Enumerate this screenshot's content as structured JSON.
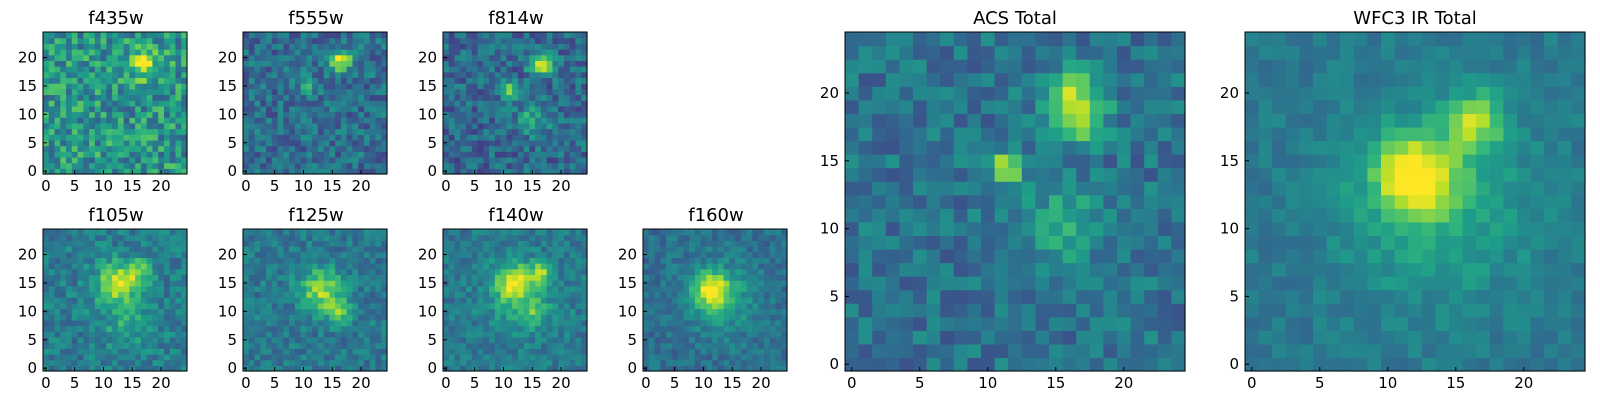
{
  "chart_data": {
    "type": "heatmap",
    "colormap": "viridis",
    "grid_size": 25,
    "panels": [
      {
        "id": "f435w",
        "title": "f435w",
        "xticks": [
          0,
          5,
          10,
          15,
          20
        ],
        "yticks": [
          0,
          5,
          10,
          15,
          20
        ],
        "noise": 0.22,
        "background": 0.52,
        "sources": [
          {
            "x": 17,
            "y": 19,
            "amp": 0.42,
            "sigma": 1.8
          }
        ]
      },
      {
        "id": "f555w",
        "title": "f555w",
        "xticks": [
          0,
          5,
          10,
          15,
          20
        ],
        "yticks": [
          0,
          5,
          10,
          15,
          20
        ],
        "noise": 0.16,
        "background": 0.36,
        "sources": [
          {
            "x": 16.5,
            "y": 19.5,
            "amp": 0.6,
            "sigma": 1.3
          },
          {
            "x": 11,
            "y": 15,
            "amp": 0.22,
            "sigma": 1.0
          }
        ]
      },
      {
        "id": "f814w",
        "title": "f814w",
        "xticks": [
          0,
          5,
          10,
          15,
          20
        ],
        "yticks": [
          0,
          5,
          10,
          15,
          20
        ],
        "noise": 0.16,
        "background": 0.34,
        "sources": [
          {
            "x": 16.5,
            "y": 19,
            "amp": 0.62,
            "sigma": 1.4
          },
          {
            "x": 11,
            "y": 14.5,
            "amp": 0.5,
            "sigma": 1.1
          },
          {
            "x": 15,
            "y": 9,
            "amp": 0.25,
            "sigma": 2.0
          }
        ]
      },
      {
        "id": "f105w",
        "title": "f105w",
        "xticks": [
          0,
          5,
          10,
          15,
          20
        ],
        "yticks": [
          0,
          5,
          10,
          15,
          20
        ],
        "noise": 0.13,
        "background": 0.42,
        "sources": [
          {
            "x": 12,
            "y": 15,
            "amp": 0.45,
            "sigma": 2.5
          },
          {
            "x": 16,
            "y": 17,
            "amp": 0.3,
            "sigma": 1.8
          },
          {
            "x": 14,
            "y": 8,
            "amp": 0.2,
            "sigma": 3.0
          }
        ]
      },
      {
        "id": "f125w",
        "title": "f125w",
        "xticks": [
          0,
          5,
          10,
          15,
          20
        ],
        "yticks": [
          0,
          5,
          10,
          15,
          20
        ],
        "noise": 0.12,
        "background": 0.4,
        "sources": [
          {
            "x": 13,
            "y": 14,
            "amp": 0.45,
            "sigma": 2.6
          },
          {
            "x": 16,
            "y": 10,
            "amp": 0.32,
            "sigma": 1.6
          }
        ]
      },
      {
        "id": "f140w",
        "title": "f140w",
        "xticks": [
          0,
          5,
          10,
          15,
          20
        ],
        "yticks": [
          0,
          5,
          10,
          15,
          20
        ],
        "noise": 0.11,
        "background": 0.4,
        "sources": [
          {
            "x": 12,
            "y": 15,
            "amp": 0.5,
            "sigma": 2.2
          },
          {
            "x": 16.5,
            "y": 17,
            "amp": 0.42,
            "sigma": 1.2
          },
          {
            "x": 15,
            "y": 9.5,
            "amp": 0.2,
            "sigma": 1.5
          },
          {
            "x": 13,
            "y": 12,
            "amp": 0.18,
            "sigma": 4.5
          }
        ]
      },
      {
        "id": "f160w",
        "title": "f160w",
        "xticks": [
          0,
          5,
          10,
          15,
          20
        ],
        "yticks": [
          0,
          5,
          10,
          15,
          20
        ],
        "noise": 0.1,
        "background": 0.36,
        "sources": [
          {
            "x": 11.5,
            "y": 14,
            "amp": 0.55,
            "sigma": 2.0
          },
          {
            "x": 13,
            "y": 12,
            "amp": 0.22,
            "sigma": 4.5
          }
        ]
      },
      {
        "id": "acs-total",
        "title": "ACS Total",
        "xticks": [
          0,
          5,
          10,
          15,
          20
        ],
        "yticks": [
          0,
          5,
          10,
          15,
          20
        ],
        "noise": 0.13,
        "background": 0.38,
        "sources": [
          {
            "x": 16.5,
            "y": 18.5,
            "amp": 0.55,
            "sigma": 1.4
          },
          {
            "x": 16.5,
            "y": 20.5,
            "amp": 0.2,
            "sigma": 1.2
          },
          {
            "x": 11.5,
            "y": 14.5,
            "amp": 0.55,
            "sigma": 0.9
          },
          {
            "x": 15.5,
            "y": 10.5,
            "amp": 0.28,
            "sigma": 1.8
          }
        ]
      },
      {
        "id": "wfc3-ir-total",
        "title": "WFC3 IR Total",
        "xticks": [
          0,
          5,
          10,
          15,
          20
        ],
        "yticks": [
          0,
          5,
          10,
          15,
          20
        ],
        "noise": 0.07,
        "background": 0.4,
        "sources": [
          {
            "x": 12,
            "y": 14,
            "amp": 0.55,
            "sigma": 2.0
          },
          {
            "x": 16.5,
            "y": 18,
            "amp": 0.42,
            "sigma": 1.4
          },
          {
            "x": 13.5,
            "y": 12,
            "amp": 0.22,
            "sigma": 5.0
          }
        ]
      }
    ]
  }
}
